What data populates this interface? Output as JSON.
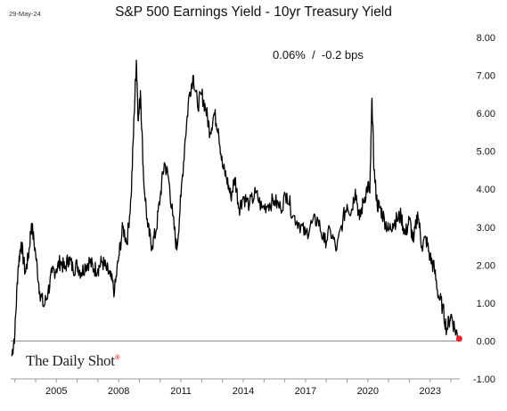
{
  "header": {
    "date_stamp": "29-May-24",
    "annotation": "0.06%  /  -0.2 bps"
  },
  "branding": {
    "logo_text": "The Daily Shot",
    "registered_mark": "®"
  },
  "colors": {
    "line": "#000000",
    "last_point": "#e8202a",
    "zero_line": "#8a8a8a"
  },
  "chart_data": {
    "type": "line",
    "title": "S&P 500 Earnings Yield - 10yr Treasury Yield",
    "xlabel": "",
    "ylabel": "",
    "xlim": [
      2002.8,
      2024.6
    ],
    "ylim": [
      -1.0,
      8.0
    ],
    "x_ticks": [
      2005,
      2008,
      2011,
      2014,
      2017,
      2020,
      2023
    ],
    "x_tick_labels": [
      "2005",
      "2008",
      "2011",
      "2014",
      "2017",
      "2020",
      "2023"
    ],
    "y_ticks": [
      -1,
      0,
      1,
      2,
      3,
      4,
      5,
      6,
      7,
      8
    ],
    "y_tick_labels": [
      "-1.00",
      "0.00",
      "1.00",
      "2.00",
      "3.00",
      "4.00",
      "5.00",
      "6.00",
      "7.00",
      "8.00"
    ],
    "y_axis_position": "right",
    "grid": false,
    "legend": "none",
    "series": [
      {
        "x": [
          2002.85,
          2003.0,
          2003.15,
          2003.3,
          2003.5,
          2003.65,
          2003.8,
          2004.0,
          2004.2,
          2004.4,
          2004.6,
          2004.8,
          2005.0,
          2005.2,
          2005.4,
          2005.6,
          2005.8,
          2006.0,
          2006.2,
          2006.4,
          2006.6,
          2006.8,
          2007.0,
          2007.2,
          2007.4,
          2007.6,
          2007.8,
          2008.0,
          2008.2,
          2008.4,
          2008.6,
          2008.75,
          2008.85,
          2008.95,
          2009.05,
          2009.2,
          2009.4,
          2009.6,
          2009.8,
          2010.0,
          2010.2,
          2010.4,
          2010.6,
          2010.8,
          2011.0,
          2011.2,
          2011.4,
          2011.6,
          2011.8,
          2012.0,
          2012.2,
          2012.4,
          2012.6,
          2012.8,
          2013.0,
          2013.2,
          2013.4,
          2013.6,
          2013.8,
          2014.0,
          2014.3,
          2014.6,
          2014.9,
          2015.2,
          2015.5,
          2015.8,
          2016.1,
          2016.4,
          2016.7,
          2017.0,
          2017.3,
          2017.6,
          2017.9,
          2018.2,
          2018.5,
          2018.8,
          2019.0,
          2019.2,
          2019.4,
          2019.6,
          2019.8,
          2020.0,
          2020.1,
          2020.2,
          2020.3,
          2020.45,
          2020.6,
          2020.8,
          2021.0,
          2021.2,
          2021.4,
          2021.6,
          2021.8,
          2022.0,
          2022.2,
          2022.4,
          2022.6,
          2022.8,
          2023.0,
          2023.2,
          2023.4,
          2023.6,
          2023.8,
          2024.0,
          2024.2,
          2024.4
        ],
        "values": [
          -0.4,
          0.2,
          1.9,
          2.6,
          1.8,
          2.2,
          3.1,
          2.3,
          1.3,
          0.9,
          1.3,
          1.8,
          1.9,
          2.1,
          1.9,
          2.2,
          1.9,
          2.0,
          1.8,
          2.0,
          2.1,
          1.9,
          1.9,
          2.1,
          1.9,
          1.7,
          1.3,
          2.2,
          3.0,
          2.6,
          3.8,
          6.0,
          7.4,
          5.8,
          6.6,
          4.3,
          3.0,
          2.5,
          2.9,
          3.8,
          4.7,
          4.3,
          3.3,
          2.4,
          3.8,
          5.3,
          6.5,
          7.0,
          6.2,
          6.5,
          6.1,
          5.5,
          6.0,
          5.6,
          4.6,
          4.3,
          3.8,
          4.3,
          3.5,
          3.8,
          3.6,
          3.9,
          3.5,
          3.6,
          3.7,
          3.5,
          3.9,
          3.3,
          3.1,
          2.8,
          3.1,
          3.2,
          2.6,
          2.9,
          2.4,
          3.2,
          3.6,
          3.4,
          4.0,
          3.2,
          3.7,
          4.1,
          3.9,
          6.4,
          4.5,
          3.6,
          3.5,
          3.2,
          2.9,
          3.1,
          3.2,
          3.3,
          2.8,
          3.2,
          2.6,
          3.4,
          2.5,
          2.7,
          2.2,
          1.9,
          1.2,
          0.9,
          0.3,
          0.7,
          0.3,
          0.06
        ]
      }
    ],
    "last_point": {
      "x": 2024.4,
      "y": 0.06
    }
  }
}
